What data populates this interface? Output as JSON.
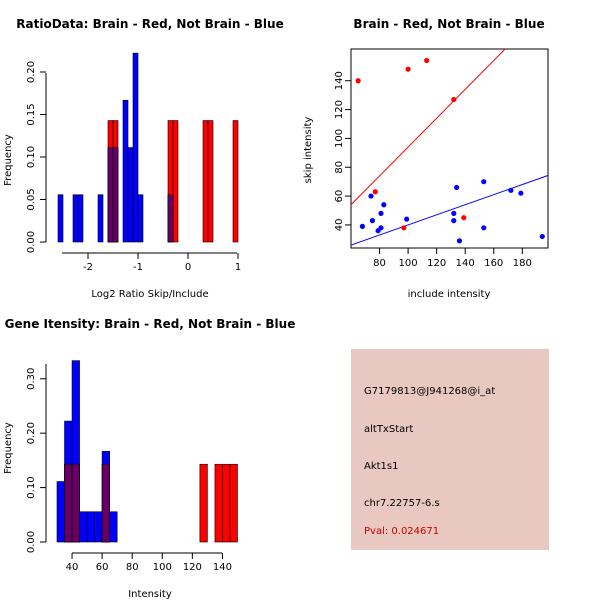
{
  "colors": {
    "red": "#ff0000",
    "blue": "#0000ff",
    "overlap": "#660066",
    "panel_bg": "#e8c8c0"
  },
  "chart_data": [
    {
      "type": "histogram",
      "title": "RatioData: Brain - Red, Not Brain - Blue",
      "xlabel": "Log2 Ratio Skip/Include",
      "ylabel": "Frequency",
      "xlim": [
        -2.6,
        1.1
      ],
      "ylim": [
        0,
        0.22
      ],
      "xticks": [
        -2,
        -1,
        0,
        1
      ],
      "yticks": [
        0.0,
        0.05,
        0.1,
        0.15,
        0.2
      ],
      "ytick_labels": [
        "0.00",
        "0.05",
        "0.10",
        "0.15",
        "0.20"
      ],
      "bin_width": 0.1,
      "series": [
        {
          "name": "Not Brain",
          "color": "blue",
          "bins": [
            {
              "x": -2.6,
              "value": 0.0556
            },
            {
              "x": -2.3,
              "value": 0.0556
            },
            {
              "x": -2.2,
              "value": 0.0556
            },
            {
              "x": -1.8,
              "value": 0.0556
            },
            {
              "x": -1.6,
              "value": 0.1111
            },
            {
              "x": -1.5,
              "value": 0.1111
            },
            {
              "x": -1.3,
              "value": 0.1667
            },
            {
              "x": -1.2,
              "value": 0.1111
            },
            {
              "x": -1.1,
              "value": 0.2222
            },
            {
              "x": -1.0,
              "value": 0.0556
            },
            {
              "x": -0.4,
              "value": 0.0556
            }
          ]
        },
        {
          "name": "Brain",
          "color": "red",
          "bins": [
            {
              "x": -1.6,
              "value": 0.1429
            },
            {
              "x": -1.5,
              "value": 0.1429
            },
            {
              "x": -0.4,
              "value": 0.1429
            },
            {
              "x": -0.3,
              "value": 0.1429
            },
            {
              "x": 0.3,
              "value": 0.1429
            },
            {
              "x": 0.4,
              "value": 0.1429
            },
            {
              "x": 0.9,
              "value": 0.1429
            }
          ]
        }
      ]
    },
    {
      "type": "scatter",
      "title": "Brain - Red, Not Brain - Blue",
      "xlabel": "include intensity",
      "ylabel": "skip intensity",
      "xlim": [
        60,
        198
      ],
      "ylim": [
        24,
        162
      ],
      "xticks": [
        80,
        100,
        120,
        140,
        160,
        180
      ],
      "yticks": [
        40,
        60,
        80,
        100,
        120,
        140
      ],
      "series": [
        {
          "name": "Brain",
          "color": "red",
          "points": [
            {
              "x": 65,
              "y": 140
            },
            {
              "x": 77,
              "y": 63
            },
            {
              "x": 97,
              "y": 38
            },
            {
              "x": 100,
              "y": 148
            },
            {
              "x": 113,
              "y": 154
            },
            {
              "x": 132,
              "y": 127
            },
            {
              "x": 139,
              "y": 45
            }
          ],
          "trend": {
            "slope": 1.0,
            "intercept": -6
          }
        },
        {
          "name": "Not Brain",
          "color": "blue",
          "points": [
            {
              "x": 68,
              "y": 39
            },
            {
              "x": 74,
              "y": 60
            },
            {
              "x": 75,
              "y": 43
            },
            {
              "x": 79,
              "y": 36
            },
            {
              "x": 81,
              "y": 38
            },
            {
              "x": 81,
              "y": 48
            },
            {
              "x": 83,
              "y": 54
            },
            {
              "x": 99,
              "y": 44
            },
            {
              "x": 132,
              "y": 48
            },
            {
              "x": 132,
              "y": 43
            },
            {
              "x": 134,
              "y": 66
            },
            {
              "x": 136,
              "y": 29
            },
            {
              "x": 153,
              "y": 38
            },
            {
              "x": 153,
              "y": 70
            },
            {
              "x": 172,
              "y": 64
            },
            {
              "x": 179,
              "y": 62
            },
            {
              "x": 194,
              "y": 32
            }
          ],
          "trend": {
            "slope": 0.35,
            "intercept": 5
          }
        }
      ]
    },
    {
      "type": "histogram",
      "title": "Gene Itensity: Brain - Red, Not Brain - Blue",
      "xlabel": "Intensity",
      "ylabel": "Frequency",
      "xlim": [
        30,
        155
      ],
      "ylim": [
        0,
        0.34
      ],
      "xticks": [
        40,
        60,
        80,
        100,
        120,
        140
      ],
      "yticks": [
        0.0,
        0.1,
        0.2,
        0.3
      ],
      "ytick_labels": [
        "0.00",
        "0.10",
        "0.20",
        "0.30"
      ],
      "bin_width": 5,
      "series": [
        {
          "name": "Not Brain",
          "color": "blue",
          "bins": [
            {
              "x": 30,
              "value": 0.1111
            },
            {
              "x": 35,
              "value": 0.2222
            },
            {
              "x": 40,
              "value": 0.3333
            },
            {
              "x": 45,
              "value": 0.0556
            },
            {
              "x": 50,
              "value": 0.0556
            },
            {
              "x": 55,
              "value": 0.0556
            },
            {
              "x": 60,
              "value": 0.1667
            },
            {
              "x": 65,
              "value": 0.0556
            }
          ]
        },
        {
          "name": "Brain",
          "color": "red",
          "bins": [
            {
              "x": 35,
              "value": 0.1429
            },
            {
              "x": 40,
              "value": 0.1429
            },
            {
              "x": 60,
              "value": 0.1429
            },
            {
              "x": 125,
              "value": 0.1429
            },
            {
              "x": 135,
              "value": 0.1429
            },
            {
              "x": 140,
              "value": 0.1429
            },
            {
              "x": 145,
              "value": 0.1429
            }
          ]
        }
      ]
    }
  ],
  "info_panel": {
    "probe_id": "G7179813@J941268@i_at",
    "event_type": "altTxStart",
    "gene": "Akt1s1",
    "location": "chr7.22757-6.s",
    "pval": "Pval: 0.024671"
  }
}
